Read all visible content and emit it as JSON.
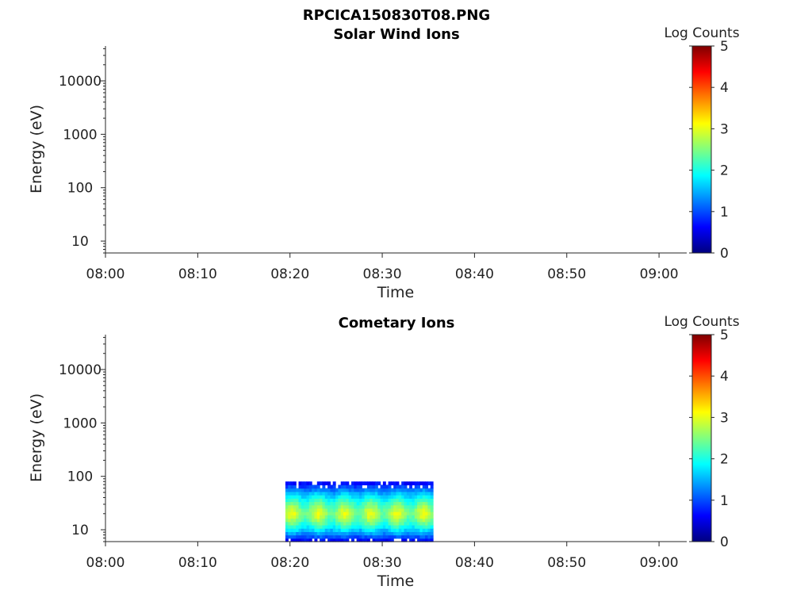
{
  "figure_title": "RPCICA150830T08.PNG",
  "colormap": "jet",
  "chart_data": [
    {
      "type": "heatmap",
      "title": "Solar Wind Ions",
      "xlabel": "Time",
      "ylabel": "Energy (eV)",
      "yscale": "log",
      "ylim": [
        6,
        45000
      ],
      "xlim": [
        "08:00",
        "09:03"
      ],
      "x_ticks": [
        "08:00",
        "08:10",
        "08:20",
        "08:30",
        "08:40",
        "08:50",
        "09:00"
      ],
      "y_ticks": [
        "10",
        "100",
        "1000",
        "10000"
      ],
      "colorbar": {
        "label": "Log Counts",
        "range": [
          0,
          5
        ],
        "ticks": [
          "0",
          "1",
          "2",
          "3",
          "4",
          "5"
        ]
      },
      "data_region": null
    },
    {
      "type": "heatmap",
      "title": "Cometary Ions",
      "xlabel": "Time",
      "ylabel": "Energy (eV)",
      "yscale": "log",
      "ylim": [
        6,
        45000
      ],
      "xlim": [
        "08:00",
        "09:03"
      ],
      "x_ticks": [
        "08:00",
        "08:10",
        "08:20",
        "08:30",
        "08:40",
        "08:50",
        "09:00"
      ],
      "y_ticks": [
        "10",
        "100",
        "1000",
        "10000"
      ],
      "colorbar": {
        "label": "Log Counts",
        "range": [
          0,
          5
        ],
        "ticks": [
          "0",
          "1",
          "2",
          "3",
          "4",
          "5"
        ]
      },
      "data_region": {
        "time_start": "08:19:30",
        "time_end": "08:35:30",
        "energy_min_eV": 6,
        "energy_max_eV": 80,
        "peak_energy_eV": 20,
        "peak_log_counts": 2.7,
        "edge_log_counts": 0.5
      }
    }
  ]
}
